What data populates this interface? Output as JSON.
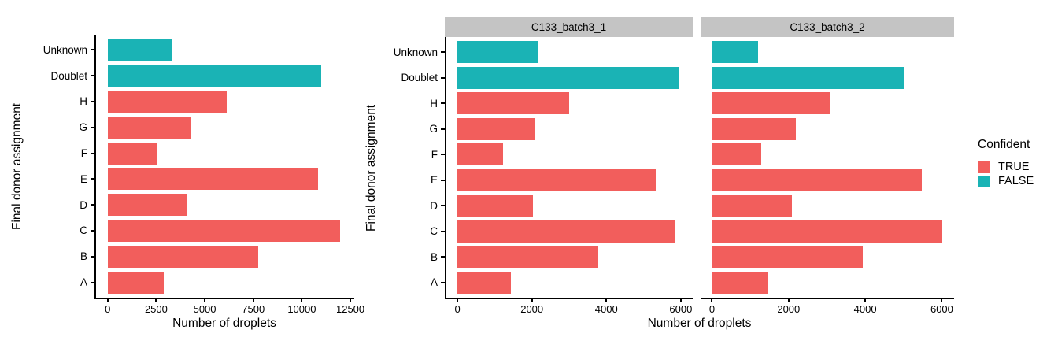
{
  "palette": {
    "confident_true": "#F25E5C",
    "confident_false": "#1AB3B5",
    "strip_background": "#C4C4C4",
    "axis": "#000000",
    "text": "#000000",
    "background": "#FFFFFF"
  },
  "legend": {
    "title": "Confident",
    "items": [
      {
        "label": "TRUE",
        "color": "#F25E5C"
      },
      {
        "label": "FALSE",
        "color": "#1AB3B5"
      }
    ]
  },
  "chart_data": [
    {
      "type": "bar",
      "orientation": "horizontal",
      "title": "",
      "xlabel": "Number of droplets",
      "ylabel": "Final donor assignment",
      "categories": [
        "Unknown",
        "Doublet",
        "H",
        "G",
        "F",
        "E",
        "D",
        "C",
        "B",
        "A"
      ],
      "values": [
        3350,
        11000,
        6150,
        4300,
        2550,
        10850,
        4100,
        11950,
        7750,
        2900
      ],
      "bar_confident": [
        false,
        false,
        true,
        true,
        true,
        true,
        true,
        true,
        true,
        true
      ],
      "x_ticks": [
        0,
        2500,
        5000,
        7500,
        10000,
        12500
      ],
      "xlim": [
        0,
        12700
      ],
      "grid": false,
      "legend_position": "none"
    },
    {
      "type": "bar",
      "orientation": "horizontal",
      "title": "",
      "xlabel": "Number of droplets",
      "ylabel": "Final donor assignment",
      "categories": [
        "Unknown",
        "Doublet",
        "H",
        "G",
        "F",
        "E",
        "D",
        "C",
        "B",
        "A"
      ],
      "bar_confident": [
        false,
        false,
        true,
        true,
        true,
        true,
        true,
        true,
        true,
        true
      ],
      "facets": [
        {
          "label": "C133_batch3_1",
          "values": [
            2150,
            5950,
            3000,
            2090,
            1230,
            5330,
            2030,
            5850,
            3780,
            1440
          ]
        },
        {
          "label": "C133_batch3_2",
          "values": [
            1200,
            5000,
            3100,
            2190,
            1290,
            5470,
            2090,
            6020,
            3930,
            1470
          ]
        }
      ],
      "x_ticks": [
        0,
        2000,
        4000,
        6000
      ],
      "xlim": [
        0,
        6320
      ],
      "grid": false,
      "legend_position": "right"
    }
  ]
}
